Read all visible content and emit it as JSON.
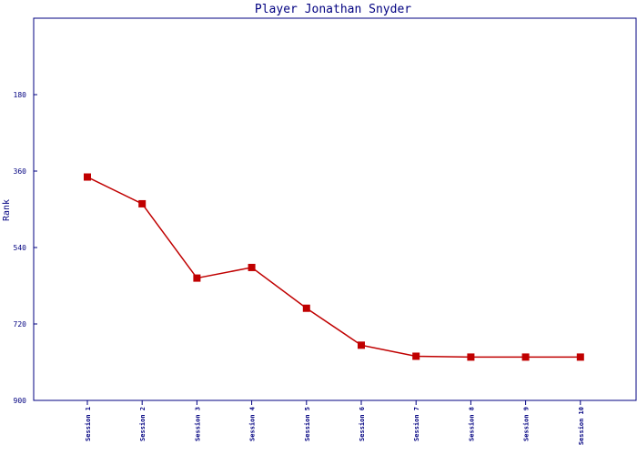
{
  "chart_data": {
    "type": "line",
    "title": "Player Jonathan Snyder",
    "xlabel": "",
    "ylabel": "Rank",
    "categories": [
      "Session 1",
      "Session 2",
      "Session 3",
      "Session 4",
      "Session 5",
      "Session 6",
      "Session 7",
      "Session 8",
      "Session 9",
      "Session 10"
    ],
    "series": [
      {
        "name": "",
        "values": [
          374,
          437,
          612,
          587,
          683,
          770,
          796,
          798,
          798,
          798
        ],
        "color": "#c00000"
      }
    ],
    "yticks": [
      180,
      360,
      540,
      720,
      900
    ],
    "ylim": [
      0,
      900
    ],
    "y_inverted": true,
    "grid": false,
    "legend": "none",
    "colors": {
      "axis": "#000080",
      "line": "#c00000",
      "background": "#ffffff"
    }
  }
}
